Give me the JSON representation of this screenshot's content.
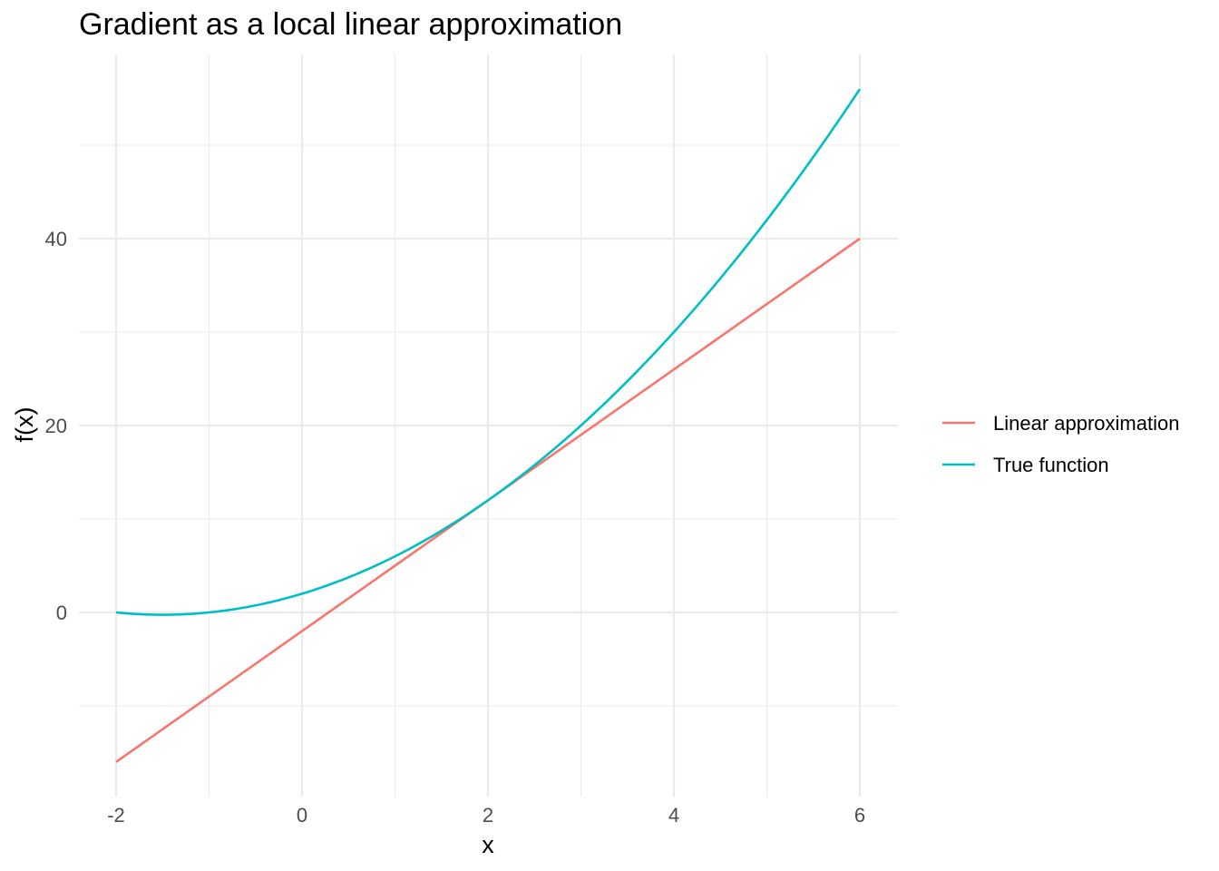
{
  "chart_data": {
    "type": "line",
    "title": "Gradient as a local linear approximation",
    "xlabel": "x",
    "ylabel": "f(x)",
    "xlim": [
      -2,
      6
    ],
    "ylim": [
      -16,
      60
    ],
    "x_ticks": [
      -2,
      0,
      2,
      4,
      6
    ],
    "x_tick_labels": [
      "-2",
      "0",
      "2",
      "4",
      "6"
    ],
    "y_ticks": [
      0,
      20,
      40
    ],
    "y_tick_labels": [
      "0",
      "20",
      "40"
    ],
    "grid": true,
    "legend_position": "right",
    "series": [
      {
        "name": "Linear approximation",
        "color": "#F8766D",
        "x": [
          -2,
          -1,
          0,
          1,
          2,
          3,
          4,
          5,
          6
        ],
        "y": [
          -16,
          -9,
          -2,
          5,
          12,
          19,
          26,
          33,
          40
        ]
      },
      {
        "name": "True function",
        "color": "#00BFC4",
        "x": [
          -2,
          -1.5,
          -1,
          -0.5,
          0,
          0.5,
          1,
          1.5,
          2,
          2.5,
          3,
          3.5,
          4,
          4.5,
          5,
          5.5,
          6
        ],
        "y": [
          0,
          -0.25,
          0,
          0.75,
          2,
          3.75,
          6,
          8.75,
          12,
          15.75,
          20,
          24.75,
          30,
          35.75,
          42,
          48.75,
          56
        ]
      }
    ]
  }
}
